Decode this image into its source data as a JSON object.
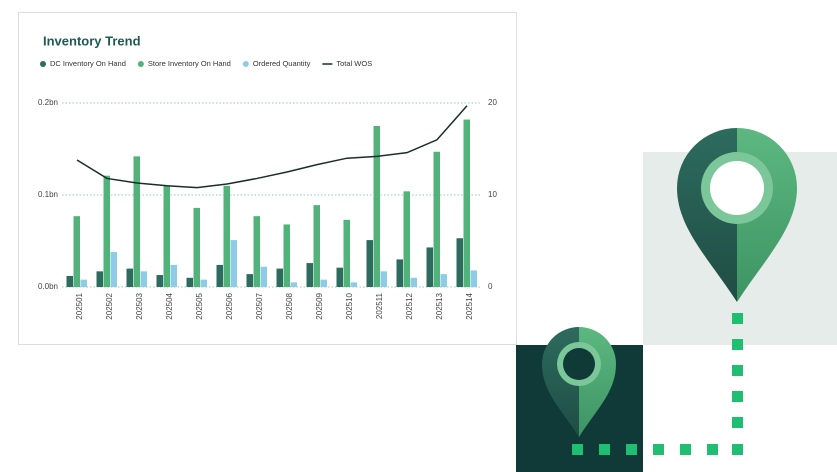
{
  "chart_data": {
    "type": "bar",
    "title": "Inventory Trend",
    "categories": [
      "202501",
      "202502",
      "202503",
      "202504",
      "202505",
      "202506",
      "202507",
      "202508",
      "202509",
      "202510",
      "202511",
      "202512",
      "202513",
      "202514"
    ],
    "series": [
      {
        "name": "DC Inventory On Hand",
        "color": "#2d6b5e",
        "type": "bar",
        "values": [
          0.012,
          0.017,
          0.02,
          0.013,
          0.01,
          0.024,
          0.014,
          0.02,
          0.026,
          0.021,
          0.051,
          0.03,
          0.043,
          0.053
        ]
      },
      {
        "name": "Store Inventory On Hand",
        "color": "#52b37a",
        "type": "bar",
        "values": [
          0.077,
          0.121,
          0.142,
          0.11,
          0.086,
          0.11,
          0.077,
          0.068,
          0.089,
          0.073,
          0.175,
          0.104,
          0.147,
          0.182
        ]
      },
      {
        "name": "Ordered Quantity",
        "color": "#8ecbe6",
        "type": "bar",
        "values": [
          0.008,
          0.038,
          0.017,
          0.024,
          0.008,
          0.051,
          0.022,
          0.005,
          0.008,
          0.005,
          0.017,
          0.01,
          0.014,
          0.018
        ]
      },
      {
        "name": "Total WOS",
        "color": "#1a2e2a",
        "type": "line",
        "axis": "y2",
        "values": [
          13.8,
          11.8,
          11.3,
          11.0,
          10.8,
          11.2,
          11.8,
          12.5,
          13.3,
          14.0,
          14.2,
          14.6,
          16.0,
          19.7
        ]
      }
    ],
    "ylim": [
      0,
      0.2
    ],
    "yticks": [
      {
        "value": 0,
        "label": "0.0bn"
      },
      {
        "value": 0.1,
        "label": "0.1bn"
      },
      {
        "value": 0.2,
        "label": "0.2bn"
      }
    ],
    "y2lim": [
      0,
      20
    ],
    "y2ticks": [
      0,
      10,
      20
    ],
    "grid": true,
    "legend": "top"
  }
}
